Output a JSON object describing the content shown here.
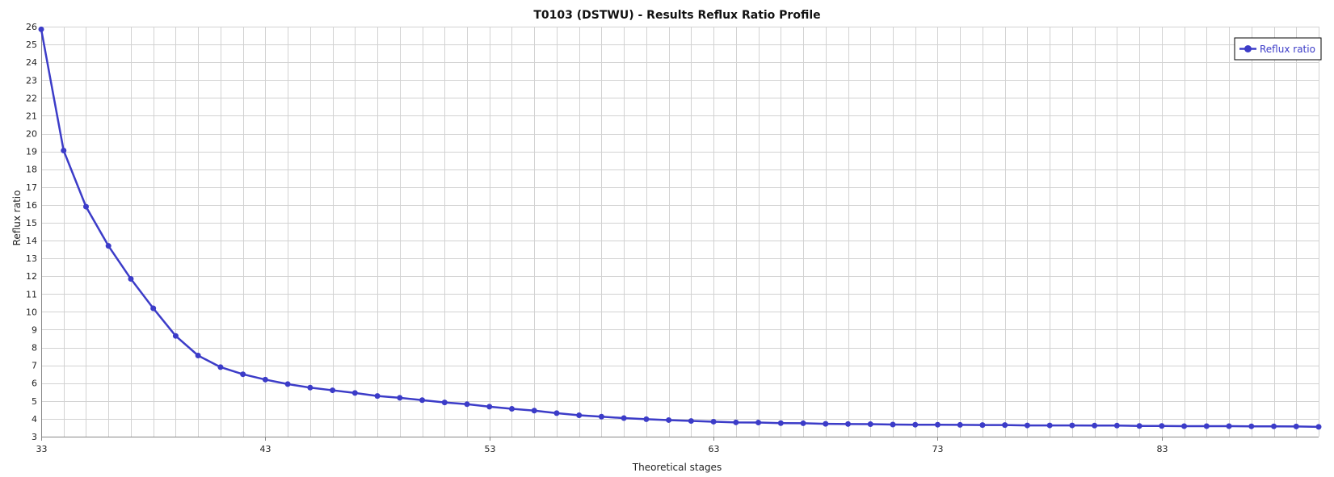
{
  "chart_data": {
    "type": "line",
    "title": "T0103 (DSTWU) - Results Reflux Ratio Profile",
    "xlabel": "Theoretical stages",
    "ylabel": "Reflux ratio",
    "xlim": [
      33,
      90
    ],
    "ylim": [
      3,
      26
    ],
    "x_ticks": [
      33,
      43,
      53,
      63,
      73,
      83
    ],
    "y_ticks": [
      3,
      4,
      5,
      6,
      7,
      8,
      9,
      10,
      11,
      12,
      13,
      14,
      15,
      16,
      17,
      18,
      19,
      20,
      21,
      22,
      23,
      24,
      25,
      26
    ],
    "grid": true,
    "legend_position": "top-right",
    "series": [
      {
        "name": "Reflux ratio",
        "color": "#3c3cc8",
        "x": [
          33,
          34,
          35,
          36,
          37,
          38,
          39,
          40,
          41,
          42,
          43,
          44,
          45,
          46,
          47,
          48,
          49,
          50,
          51,
          52,
          53,
          54,
          55,
          56,
          57,
          58,
          59,
          60,
          61,
          62,
          63,
          64,
          65,
          66,
          67,
          68,
          69,
          70,
          71,
          72,
          73,
          74,
          75,
          76,
          77,
          78,
          79,
          80,
          81,
          82,
          83,
          84,
          85,
          86,
          87,
          88,
          89,
          90
        ],
        "values": [
          25.85,
          19.05,
          15.9,
          13.7,
          11.85,
          10.2,
          8.65,
          7.55,
          6.9,
          6.5,
          6.2,
          5.95,
          5.75,
          5.6,
          5.45,
          5.28,
          5.18,
          5.05,
          4.92,
          4.82,
          4.68,
          4.56,
          4.46,
          4.32,
          4.2,
          4.12,
          4.04,
          3.98,
          3.93,
          3.88,
          3.84,
          3.8,
          3.79,
          3.76,
          3.75,
          3.72,
          3.71,
          3.7,
          3.68,
          3.67,
          3.67,
          3.66,
          3.65,
          3.65,
          3.63,
          3.63,
          3.63,
          3.62,
          3.62,
          3.6,
          3.6,
          3.59,
          3.59,
          3.59,
          3.58,
          3.58,
          3.57,
          3.55
        ]
      }
    ]
  }
}
